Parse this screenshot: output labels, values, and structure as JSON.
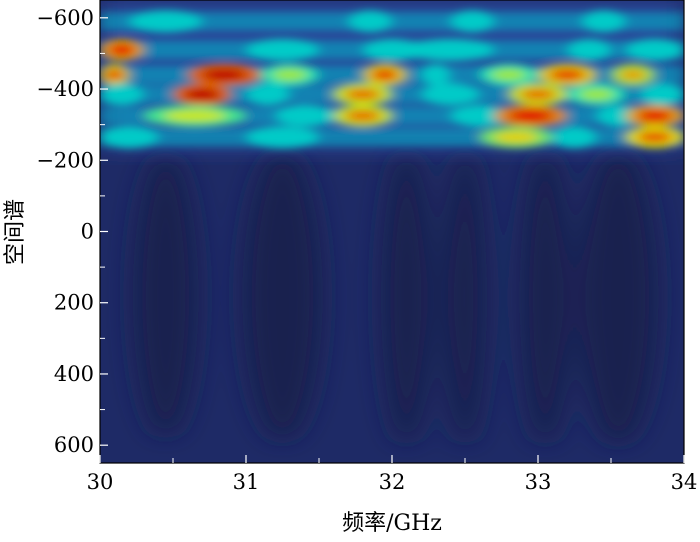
{
  "chart_data": {
    "type": "heatmap",
    "title": "",
    "xlabel": "频率/GHz",
    "ylabel": "空间谱",
    "xlim": [
      30,
      34
    ],
    "ylim": [
      650,
      -650
    ],
    "xticks": [
      30,
      31,
      32,
      33,
      34
    ],
    "xtick_labels": [
      "30",
      "31",
      "32",
      "33",
      "34"
    ],
    "yticks": [
      -600,
      -400,
      -200,
      0,
      200,
      400,
      600
    ],
    "ytick_labels": [
      "−600",
      "−400",
      "−200",
      "0",
      "200",
      "400",
      "600"
    ],
    "colormap": "jet",
    "background_color": "#1e2a66",
    "dark_lobes": [
      {
        "center": 30.45,
        "y_from": -220,
        "y_to": 580,
        "width": 0.45
      },
      {
        "center": 31.25,
        "y_from": -230,
        "y_to": 590,
        "width": 0.55
      },
      {
        "center": 32.1,
        "y_from": -230,
        "y_to": 600,
        "width": 0.35
      },
      {
        "center": 32.5,
        "y_from": -230,
        "y_to": 600,
        "width": 0.3
      },
      {
        "center": 33.05,
        "y_from": -230,
        "y_to": 600,
        "width": 0.35
      },
      {
        "center": 33.55,
        "y_from": -230,
        "y_to": 600,
        "width": 0.55
      }
    ],
    "bands": [
      {
        "y": -590,
        "segments": [
          [
            30.2,
            30.7,
            0.45
          ],
          [
            31.7,
            32.0,
            0.3
          ],
          [
            32.4,
            32.7,
            0.25
          ],
          [
            33.3,
            33.6,
            0.25
          ]
        ]
      },
      {
        "y": -510,
        "segments": [
          [
            30.0,
            30.3,
            0.85
          ],
          [
            31.0,
            31.5,
            0.5
          ],
          [
            31.8,
            32.2,
            0.3
          ],
          [
            32.1,
            32.7,
            0.5
          ],
          [
            33.2,
            33.5,
            0.35
          ],
          [
            33.6,
            34.0,
            0.45
          ]
        ]
      },
      {
        "y": -440,
        "segments": [
          [
            30.0,
            30.2,
            0.8
          ],
          [
            30.6,
            31.1,
            0.92
          ],
          [
            31.1,
            31.5,
            0.55
          ],
          [
            31.8,
            32.1,
            0.8
          ],
          [
            32.2,
            32.4,
            0.45
          ],
          [
            32.6,
            33.0,
            0.55
          ],
          [
            33.0,
            33.4,
            0.8
          ],
          [
            33.5,
            33.8,
            0.7
          ]
        ]
      },
      {
        "y": -385,
        "segments": [
          [
            30.0,
            30.3,
            0.35
          ],
          [
            30.5,
            30.9,
            0.92
          ],
          [
            31.0,
            31.3,
            0.5
          ],
          [
            31.6,
            32.0,
            0.75
          ],
          [
            32.2,
            32.6,
            0.35
          ],
          [
            32.8,
            33.2,
            0.75
          ],
          [
            33.2,
            33.6,
            0.55
          ],
          [
            33.7,
            34.0,
            0.45
          ]
        ]
      },
      {
        "y": -325,
        "segments": [
          [
            30.3,
            31.0,
            0.6
          ],
          [
            31.2,
            31.6,
            0.35
          ],
          [
            31.6,
            32.0,
            0.75
          ],
          [
            32.4,
            32.8,
            0.35
          ],
          [
            32.7,
            33.2,
            0.88
          ],
          [
            33.4,
            33.7,
            0.45
          ],
          [
            33.6,
            34.0,
            0.85
          ]
        ]
      },
      {
        "y": -265,
        "segments": [
          [
            30.0,
            30.4,
            0.3
          ],
          [
            31.0,
            31.5,
            0.3
          ],
          [
            32.6,
            33.1,
            0.65
          ],
          [
            33.1,
            33.4,
            0.35
          ],
          [
            33.6,
            34.0,
            0.78
          ]
        ]
      }
    ]
  }
}
